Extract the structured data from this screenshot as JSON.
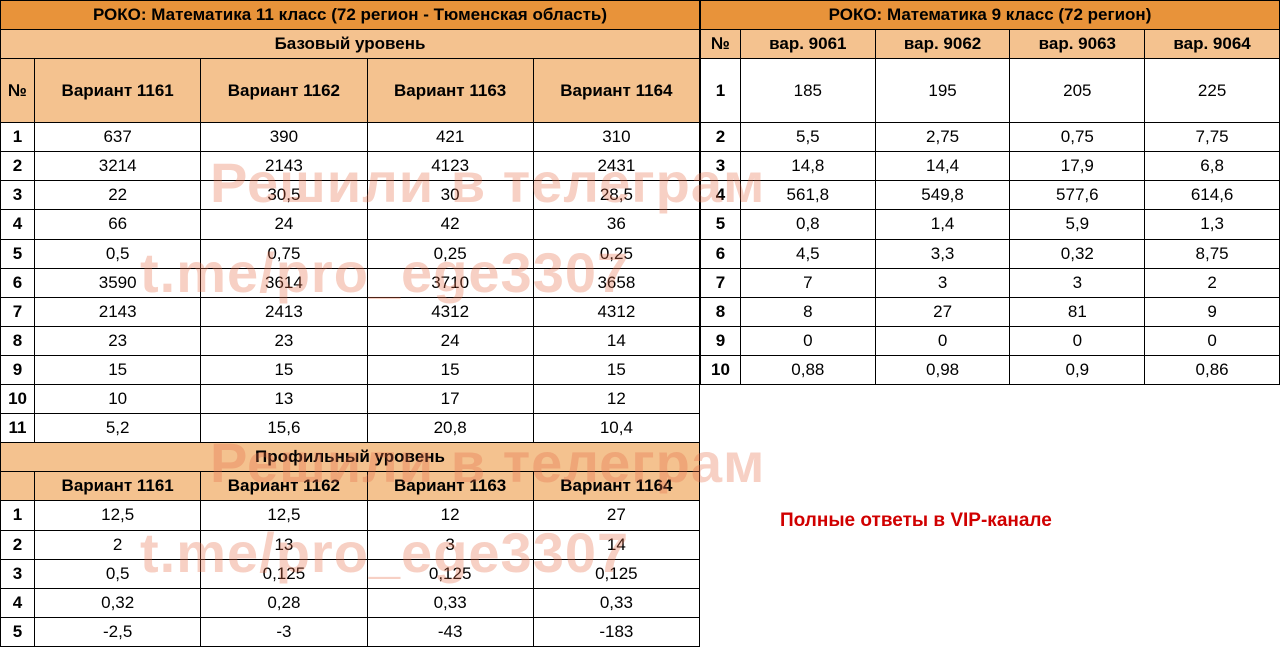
{
  "left": {
    "title": "РОКО: Математика 11 класс (72 регион - Тюменская область)",
    "base_label": "Базовый уровень",
    "prof_label": "Профильный уровень",
    "num": "№",
    "headers": [
      "Вариант 1161",
      "Вариант 1162",
      "Вариант 1163",
      "Вариант 1164"
    ],
    "base_rows": [
      [
        "1",
        "637",
        "390",
        "421",
        "310"
      ],
      [
        "2",
        "3214",
        "2143",
        "4123",
        "2431"
      ],
      [
        "3",
        "22",
        "30,5",
        "30",
        "28,5"
      ],
      [
        "4",
        "66",
        "24",
        "42",
        "36"
      ],
      [
        "5",
        "0,5",
        "0,75",
        "0,25",
        "0,25"
      ],
      [
        "6",
        "3590",
        "3614",
        "3710",
        "3658"
      ],
      [
        "7",
        "2143",
        "2413",
        "4312",
        "4312"
      ],
      [
        "8",
        "23",
        "23",
        "24",
        "14"
      ],
      [
        "9",
        "15",
        "15",
        "15",
        "15"
      ],
      [
        "10",
        "10",
        "13",
        "17",
        "12"
      ],
      [
        "11",
        "5,2",
        "15,6",
        "20,8",
        "10,4"
      ]
    ],
    "prof_rows": [
      [
        "1",
        "12,5",
        "12,5",
        "12",
        "27"
      ],
      [
        "2",
        "2",
        "13",
        "3",
        "14"
      ],
      [
        "3",
        "0,5",
        "0,125",
        "0,125",
        "0,125"
      ],
      [
        "4",
        "0,32",
        "0,28",
        "0,33",
        "0,33"
      ],
      [
        "5",
        "-2,5",
        "-3",
        "-43",
        "-183"
      ]
    ]
  },
  "right": {
    "title": "РОКО: Математика 9 класс (72 регион)",
    "num": "№",
    "headers": [
      "вар. 9061",
      "вар. 9062",
      "вар. 9063",
      "вар. 9064"
    ],
    "rows": [
      [
        "1",
        "185",
        "195",
        "205",
        "225"
      ],
      [
        "2",
        "5,5",
        "2,75",
        "0,75",
        "7,75"
      ],
      [
        "3",
        "14,8",
        "14,4",
        "17,9",
        "6,8"
      ],
      [
        "4",
        "561,8",
        "549,8",
        "577,6",
        "614,6"
      ],
      [
        "5",
        "0,8",
        "1,4",
        "5,9",
        "1,3"
      ],
      [
        "6",
        "4,5",
        "3,3",
        "0,32",
        "8,75"
      ],
      [
        "7",
        "7",
        "3",
        "3",
        "2"
      ],
      [
        "8",
        "8",
        "27",
        "81",
        "9"
      ],
      [
        "9",
        "0",
        "0",
        "0",
        "0"
      ],
      [
        "10",
        "0,88",
        "0,98",
        "0,9",
        "0,86"
      ]
    ]
  },
  "watermark": {
    "line1": "Решили в телеграм",
    "line2": "t.me/pro_ege3307"
  },
  "vip_text": "Полные ответы в VIP-канале",
  "colors": {
    "header_dark": "#e8933a",
    "header_light": "#f4c28f",
    "watermark": "rgba(230,110,70,0.32)",
    "vip": "#d00000",
    "border": "#000000"
  }
}
